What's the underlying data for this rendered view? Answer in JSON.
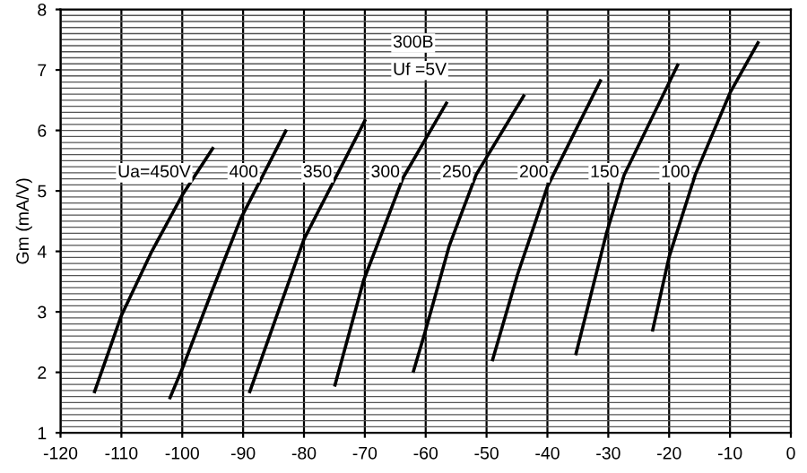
{
  "chart_data": {
    "type": "line",
    "ylabel": "Gm (mA/V)",
    "annotations": [
      "300B",
      "Uf =5V"
    ],
    "xlim": [
      -120,
      0
    ],
    "ylim": [
      1,
      8
    ],
    "xticks": [
      -120,
      -110,
      -100,
      -90,
      -80,
      -70,
      -60,
      -50,
      -40,
      -30,
      -20,
      -10,
      0
    ],
    "yticks": [
      1,
      2,
      3,
      4,
      5,
      6,
      7,
      8
    ],
    "grid": true,
    "legend": false,
    "marker": "none",
    "line_style": "solid",
    "series": [
      {
        "name": "Ua=450V",
        "color": "#000000",
        "x": [
          -114.4,
          -110,
          -105,
          -100,
          -95.0
        ],
        "values": [
          1.68,
          2.94,
          4.0,
          4.93,
          5.7
        ]
      },
      {
        "name": "400",
        "color": "#000000",
        "x": [
          -102,
          -100,
          -95.2,
          -90.4,
          -83
        ],
        "values": [
          1.58,
          2.06,
          3.32,
          4.54,
          5.99
        ]
      },
      {
        "name": "350",
        "color": "#000000",
        "x": [
          -88.9,
          -84.6,
          -80,
          -70
        ],
        "values": [
          1.68,
          2.9,
          4.2,
          6.16
        ]
      },
      {
        "name": "300",
        "color": "#000000",
        "x": [
          -74.9,
          -70.2,
          -63.7,
          -56.6
        ],
        "values": [
          1.79,
          3.52,
          5.22,
          6.45
        ]
      },
      {
        "name": "250",
        "color": "#000000",
        "x": [
          -62.0,
          -60.0,
          -56.1,
          -51.7,
          -43.9
        ],
        "values": [
          2.02,
          2.7,
          4.1,
          5.27,
          6.57
        ]
      },
      {
        "name": "200",
        "color": "#000000",
        "x": [
          -49.0,
          -44.9,
          -40.0,
          -31.3
        ],
        "values": [
          2.21,
          3.62,
          5.07,
          6.82
        ]
      },
      {
        "name": "150",
        "color": "#000000",
        "x": [
          -35.3,
          -30.3,
          -27.4,
          -18.6
        ],
        "values": [
          2.31,
          4.3,
          5.26,
          7.08
        ]
      },
      {
        "name": "100",
        "color": "#000000",
        "x": [
          -22.7,
          -20.0,
          -15.7,
          -10.0,
          -5.4
        ],
        "values": [
          2.7,
          3.91,
          5.27,
          6.62,
          7.45
        ]
      }
    ]
  }
}
